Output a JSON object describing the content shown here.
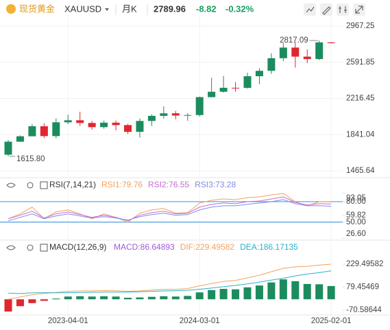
{
  "header": {
    "name": "现货黄金",
    "symbol": "XAUUSD",
    "period": "月K",
    "price": "2789.96",
    "change": "-8.82",
    "change_pct": "-0.32%"
  },
  "chart_data": [
    {
      "type": "candlestick",
      "up_color": "#1c8c5e",
      "down_color": "#e0262f",
      "categories": [
        null,
        null,
        null,
        null,
        null,
        "2023-04-01",
        null,
        null,
        null,
        null,
        null,
        null,
        null,
        null,
        null,
        null,
        "2024-03-01",
        null,
        null,
        null,
        null,
        null,
        null,
        null,
        null,
        null,
        null,
        "2025-02-01"
      ],
      "open": [
        1633,
        1768,
        1824,
        1928,
        1826,
        1969,
        1990,
        1962,
        1919,
        1965,
        1940,
        1870,
        1983,
        2036,
        2062,
        2039,
        2044,
        2230,
        2286,
        2327,
        2326,
        2447,
        2503,
        2634,
        2744,
        2650,
        2625,
        2798
      ],
      "high": [
        1786,
        1833,
        1949,
        1959,
        2009,
        2048,
        2079,
        1983,
        1987,
        1987,
        1953,
        2009,
        2052,
        2135,
        2088,
        2065,
        2236,
        2431,
        2450,
        2387,
        2483,
        2531,
        2685,
        2790,
        2801,
        2726,
        2817.09,
        2802
      ],
      "low": [
        1615.8,
        1765,
        1823,
        1805,
        1804,
        1949,
        1932,
        1893,
        1903,
        1885,
        1848,
        1810,
        1931,
        2009,
        2001,
        1984,
        2030,
        2228,
        2277,
        2286,
        2319,
        2364,
        2471,
        2604,
        2536,
        2583,
        2614,
        2786
      ],
      "close": [
        1768,
        1824,
        1928,
        1826,
        1969,
        1990,
        1962,
        1919,
        1965,
        1940,
        1870,
        1983,
        2036,
        2062,
        2039,
        2044,
        2230,
        2286,
        2327,
        2326,
        2447,
        2503,
        2634,
        2744,
        2650,
        2625,
        2798,
        2790
      ],
      "ylim": [
        1401.6,
        3081
      ],
      "yticks": [
        2967.25,
        2591.85,
        2216.45,
        1841.04,
        1465.64
      ],
      "annotations": [
        {
          "value": 2817.09
        },
        {
          "value": 1615.8,
          "label": "1615.80"
        }
      ],
      "grid": true
    },
    {
      "type": "line",
      "title": "RSI(7,14,21)",
      "series": [
        {
          "name": "RSI1:79.76",
          "color": "#f5a05a",
          "values": [
            55,
            62,
            72,
            55,
            65,
            68,
            62,
            55,
            62,
            57,
            50,
            63,
            68,
            70,
            63,
            64,
            78,
            82,
            84,
            83,
            86,
            87,
            90,
            92,
            80,
            74,
            80,
            79.76
          ]
        },
        {
          "name": "RSI2:76.55",
          "color": "#c86ad6",
          "values": [
            55,
            60,
            66,
            56,
            62,
            65,
            61,
            57,
            60,
            57,
            52,
            60,
            64,
            66,
            62,
            63,
            72,
            76,
            78,
            77,
            80,
            81,
            84,
            87,
            79,
            75,
            77,
            76.55
          ]
        },
        {
          "name": "RSI3:73.28",
          "color": "#7b8de8",
          "values": [
            52,
            57,
            62,
            55,
            59,
            62,
            59,
            56,
            58,
            56,
            53,
            58,
            61,
            63,
            60,
            61,
            68,
            72,
            74,
            74,
            76,
            78,
            80,
            83,
            77,
            74,
            74,
            73.28
          ]
        }
      ],
      "ylim": [
        26.6,
        93.05
      ],
      "yticks": [
        93.05,
        {
          "value": 80,
          "label": "80.00"
        },
        59.82,
        {
          "value": 50,
          "label": "50.00"
        },
        {
          "value": 26.6,
          "label": "26.60"
        }
      ],
      "reference_lines": [
        80,
        50
      ],
      "reference_color": "#4a9fe0"
    },
    {
      "type": "macd",
      "title": "MACD(12,26,9)",
      "up_color": "#1c8c5e",
      "down_color": "#e0262f",
      "histogram": {
        "name": "MACD:86.64893",
        "color": "#a05ad8",
        "values": [
          -80,
          -45,
          -25,
          -10,
          5,
          18,
          20,
          18,
          20,
          18,
          10,
          12,
          16,
          20,
          18,
          22,
          45,
          60,
          68,
          65,
          78,
          90,
          110,
          130,
          118,
          100,
          98,
          86.64893
        ]
      },
      "series": [
        {
          "name": "DIF:229.49582",
          "color": "#f5a05a",
          "values": [
            0,
            15,
            30,
            38,
            45,
            52,
            55,
            55,
            57,
            56,
            52,
            55,
            60,
            65,
            65,
            70,
            88,
            103,
            116,
            123,
            140,
            157,
            180,
            202,
            212,
            215,
            223,
            229.49582
          ]
        },
        {
          "name": "DEA:186.17135",
          "color": "#2ab0c8",
          "values": [
            40,
            37.5,
            42.5,
            43,
            42.5,
            43,
            45,
            46,
            47,
            47,
            47,
            49,
            52,
            55,
            56,
            59,
            65.5,
            73,
            82,
            90.5,
            101,
            112,
            125,
            137,
            153,
            165,
            174,
            186.17135
          ]
        }
      ],
      "ylim": [
        -97.5,
        305.6
      ],
      "yticks": [
        229.49582,
        79.45469,
        -70.58644
      ]
    }
  ]
}
